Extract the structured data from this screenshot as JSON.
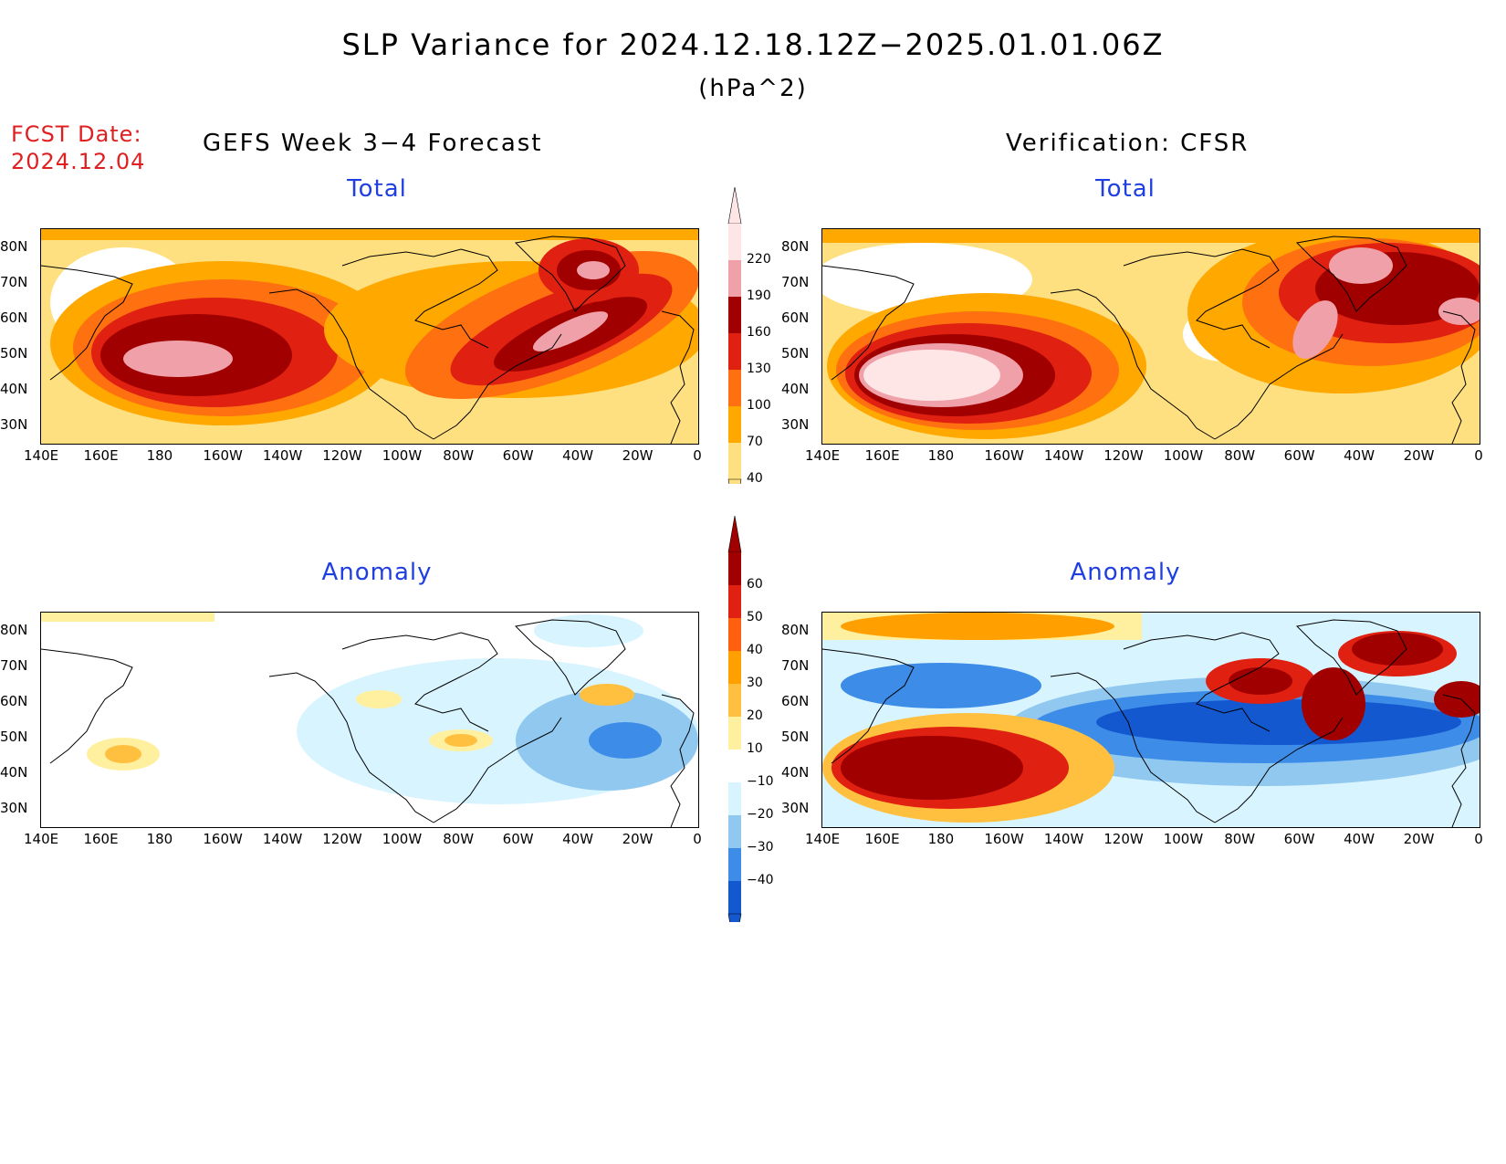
{
  "header": {
    "title": "SLP Variance for 2024.12.18.12Z−2025.01.01.06Z",
    "units": "(hPa^2)",
    "fcst_label": "FCST Date:",
    "fcst_date": "2024.12.04",
    "left_column": "GEFS Week 3−4 Forecast",
    "right_column": "Verification: CFSR"
  },
  "panels": {
    "total_title": "Total",
    "anomaly_title": "Anomaly"
  },
  "axes": {
    "lon_labels": [
      "140E",
      "160E",
      "180",
      "160W",
      "140W",
      "120W",
      "100W",
      "80W",
      "60W",
      "40W",
      "20W",
      "0"
    ],
    "lat_labels": [
      "80N",
      "70N",
      "60N",
      "50N",
      "40N",
      "30N"
    ]
  },
  "colorbars": {
    "total": {
      "levels": [
        "220",
        "190",
        "160",
        "130",
        "100",
        "70",
        "40"
      ],
      "colors": [
        "#ffe6e6",
        "#f0a0a8",
        "#a00000",
        "#e02010",
        "#ff7010",
        "#ffa800",
        "#ffe080"
      ]
    },
    "anomaly": {
      "levels": [
        "60",
        "50",
        "40",
        "30",
        "20",
        "10",
        "−10",
        "−20",
        "−30",
        "−40"
      ],
      "colors": [
        "#a00000",
        "#e02010",
        "#ff6010",
        "#ffa000",
        "#ffc040",
        "#fff0a0",
        "#ffffff",
        "#d8f4ff",
        "#90c8f0",
        "#3c8ce8",
        "#1458d0"
      ]
    }
  },
  "map_colors": {
    "var40": "#ffe080",
    "var70": "#ffa800",
    "var100": "#ff7010",
    "var130": "#e02010",
    "var160": "#a00000",
    "var190": "#f0a0a8",
    "var220": "#ffe6e6",
    "pos10": "#fff0a0",
    "pos20": "#ffc040",
    "pos30": "#ffa000",
    "pos50": "#e02010",
    "pos60": "#a00000",
    "neg10": "#d8f4ff",
    "neg20": "#90c8f0",
    "neg30": "#3c8ce8",
    "neg40": "#1458d0"
  }
}
